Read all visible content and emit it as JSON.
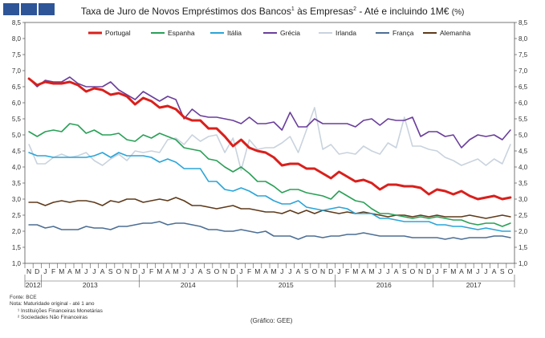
{
  "title": {
    "text_part1": "Taxa de Juro de Novos Empréstimos dos Bancos",
    "sup1": "1",
    "text_part2": " às Empresas",
    "sup2": "2",
    "text_part3": " - Até e incluindo 1M€ ",
    "unit": "(%)"
  },
  "notes": {
    "fonte": "Fonte: BCE",
    "nota": "Nota: Maturidade original - até 1 ano",
    "n1": "¹ Instituições Financeiras Monetárias",
    "n2": "² Sociedades Não Financeiras"
  },
  "source": "(Gráfico: GEE)",
  "chart_data": {
    "type": "line",
    "title": "Taxa de Juro de Novos Empréstimos dos Bancos às Empresas - Até e incluindo 1M€ (%)",
    "xlabel": "",
    "ylabel": "%",
    "ylim": [
      1.0,
      8.5
    ],
    "yticks": [
      "1,0",
      "1,5",
      "2,0",
      "2,5",
      "3,0",
      "3,5",
      "4,0",
      "4,5",
      "5,0",
      "5,5",
      "6,0",
      "6,5",
      "7,0",
      "7,5",
      "8,0",
      "8,5"
    ],
    "legend_position": "top",
    "month_labels": [
      "N",
      "D",
      "J",
      "F",
      "M",
      "A",
      "M",
      "J",
      "J",
      "A",
      "S",
      "O",
      "N",
      "D",
      "J",
      "F",
      "M",
      "A",
      "M",
      "J",
      "J",
      "A",
      "S",
      "O",
      "N",
      "D",
      "J",
      "F",
      "M",
      "A",
      "M",
      "J",
      "J",
      "A",
      "S",
      "O",
      "N",
      "D",
      "J",
      "F",
      "M",
      "A",
      "M",
      "J",
      "J",
      "A",
      "S",
      "O",
      "N",
      "D",
      "J",
      "F",
      "M",
      "A",
      "M",
      "J",
      "J",
      "A",
      "S",
      "O"
    ],
    "year_labels": [
      {
        "year": "2012",
        "start": 0,
        "end": 1
      },
      {
        "year": "2013",
        "start": 2,
        "end": 13
      },
      {
        "year": "2014",
        "start": 14,
        "end": 25
      },
      {
        "year": "2015",
        "start": 26,
        "end": 37
      },
      {
        "year": "2016",
        "start": 38,
        "end": 49
      },
      {
        "year": "2017",
        "start": 50,
        "end": 59
      }
    ],
    "series": [
      {
        "name": "Portugal",
        "color": "#d9201c",
        "width": 3,
        "values": [
          6.75,
          6.55,
          6.65,
          6.6,
          6.6,
          6.65,
          6.55,
          6.35,
          6.45,
          6.4,
          6.25,
          6.3,
          6.2,
          5.95,
          6.15,
          6.05,
          5.85,
          5.9,
          5.8,
          5.55,
          5.45,
          5.45,
          5.2,
          5.2,
          4.95,
          4.65,
          4.85,
          4.6,
          4.5,
          4.45,
          4.3,
          4.05,
          4.1,
          4.1,
          3.95,
          3.95,
          3.8,
          3.65,
          3.85,
          3.7,
          3.55,
          3.6,
          3.5,
          3.3,
          3.45,
          3.45,
          3.4,
          3.4,
          3.35,
          3.15,
          3.3,
          3.25,
          3.15,
          3.25,
          3.1,
          3.0,
          3.05,
          3.1,
          3.0,
          3.05
        ]
      },
      {
        "name": "Espanha",
        "color": "#2aa057",
        "width": 1.6,
        "values": [
          5.1,
          4.95,
          5.1,
          5.15,
          5.1,
          5.35,
          5.3,
          5.05,
          5.15,
          5.0,
          5.0,
          5.05,
          4.85,
          4.8,
          5.0,
          4.9,
          5.05,
          4.95,
          4.85,
          4.6,
          4.55,
          4.5,
          4.25,
          4.2,
          4.0,
          3.85,
          4.0,
          3.8,
          3.55,
          3.55,
          3.4,
          3.2,
          3.3,
          3.3,
          3.2,
          3.15,
          3.1,
          3.0,
          3.25,
          3.1,
          2.95,
          2.9,
          2.7,
          2.55,
          2.55,
          2.5,
          2.45,
          2.4,
          2.45,
          2.4,
          2.45,
          2.4,
          2.35,
          2.35,
          2.25,
          2.2,
          2.25,
          2.25,
          2.15,
          2.25
        ]
      },
      {
        "name": "Itália",
        "color": "#2aa5d8",
        "width": 1.6,
        "values": [
          4.45,
          4.35,
          4.35,
          4.3,
          4.3,
          4.3,
          4.3,
          4.3,
          4.35,
          4.45,
          4.3,
          4.45,
          4.35,
          4.35,
          4.35,
          4.3,
          4.15,
          4.25,
          4.15,
          3.95,
          3.95,
          3.95,
          3.55,
          3.55,
          3.3,
          3.25,
          3.35,
          3.25,
          3.1,
          3.1,
          2.95,
          2.85,
          2.85,
          2.95,
          2.75,
          2.7,
          2.65,
          2.7,
          2.75,
          2.7,
          2.55,
          2.55,
          2.55,
          2.4,
          2.4,
          2.35,
          2.3,
          2.3,
          2.3,
          2.3,
          2.2,
          2.2,
          2.15,
          2.15,
          2.1,
          2.05,
          2.1,
          2.05,
          2.0,
          2.0
        ]
      },
      {
        "name": "Grécia",
        "color": "#6a3f9b",
        "width": 1.6,
        "values": [
          6.75,
          6.5,
          6.7,
          6.65,
          6.65,
          6.8,
          6.6,
          6.5,
          6.5,
          6.5,
          6.65,
          6.4,
          6.25,
          6.1,
          6.35,
          6.2,
          6.05,
          6.2,
          6.1,
          5.5,
          5.8,
          5.6,
          5.55,
          5.55,
          5.5,
          5.45,
          5.35,
          5.55,
          5.35,
          5.35,
          5.4,
          5.15,
          5.7,
          5.25,
          5.25,
          5.5,
          5.35,
          5.35,
          5.35,
          5.35,
          5.25,
          5.45,
          5.5,
          5.3,
          5.5,
          5.45,
          5.45,
          5.55,
          4.95,
          5.1,
          5.1,
          4.95,
          5.0,
          4.6,
          4.85,
          5.0,
          4.95,
          5.0,
          4.85,
          5.15
        ]
      },
      {
        "name": "Irlanda",
        "color": "#c9d3de",
        "width": 1.6,
        "values": [
          4.7,
          4.1,
          4.1,
          4.3,
          4.4,
          4.3,
          4.35,
          4.45,
          4.2,
          4.05,
          4.25,
          4.4,
          4.2,
          4.5,
          4.45,
          4.5,
          4.45,
          4.85,
          4.9,
          4.7,
          5.0,
          4.8,
          4.95,
          5.0,
          4.45,
          4.9,
          3.9,
          4.85,
          4.55,
          4.6,
          4.6,
          4.75,
          4.95,
          4.45,
          5.15,
          5.85,
          4.55,
          4.7,
          4.4,
          4.45,
          4.4,
          4.65,
          4.5,
          4.4,
          4.75,
          4.6,
          5.55,
          4.65,
          4.65,
          4.55,
          4.5,
          4.3,
          4.2,
          4.05,
          4.15,
          4.25,
          4.05,
          4.25,
          4.1,
          4.7
        ]
      },
      {
        "name": "França",
        "color": "#4d6f94",
        "width": 1.6,
        "values": [
          2.2,
          2.2,
          2.1,
          2.15,
          2.05,
          2.05,
          2.05,
          2.15,
          2.1,
          2.1,
          2.05,
          2.15,
          2.15,
          2.2,
          2.25,
          2.25,
          2.3,
          2.2,
          2.25,
          2.25,
          2.2,
          2.15,
          2.05,
          2.05,
          2.0,
          2.0,
          2.05,
          2.0,
          1.95,
          2.0,
          1.85,
          1.85,
          1.85,
          1.75,
          1.85,
          1.85,
          1.8,
          1.85,
          1.85,
          1.9,
          1.9,
          1.95,
          1.9,
          1.85,
          1.85,
          1.85,
          1.85,
          1.8,
          1.8,
          1.8,
          1.8,
          1.75,
          1.8,
          1.75,
          1.8,
          1.8,
          1.8,
          1.85,
          1.85,
          1.8
        ]
      },
      {
        "name": "Alemanha",
        "color": "#5e3a1b",
        "width": 1.6,
        "values": [
          2.9,
          2.9,
          2.8,
          2.9,
          2.95,
          2.9,
          2.95,
          2.95,
          2.9,
          2.8,
          2.95,
          2.9,
          3.0,
          3.0,
          2.9,
          2.95,
          3.0,
          2.95,
          3.05,
          2.95,
          2.8,
          2.8,
          2.75,
          2.7,
          2.75,
          2.8,
          2.7,
          2.7,
          2.65,
          2.6,
          2.6,
          2.55,
          2.65,
          2.55,
          2.65,
          2.55,
          2.65,
          2.6,
          2.55,
          2.6,
          2.55,
          2.6,
          2.55,
          2.5,
          2.45,
          2.5,
          2.5,
          2.45,
          2.5,
          2.45,
          2.5,
          2.45,
          2.45,
          2.45,
          2.5,
          2.45,
          2.4,
          2.45,
          2.5,
          2.45
        ]
      }
    ]
  }
}
